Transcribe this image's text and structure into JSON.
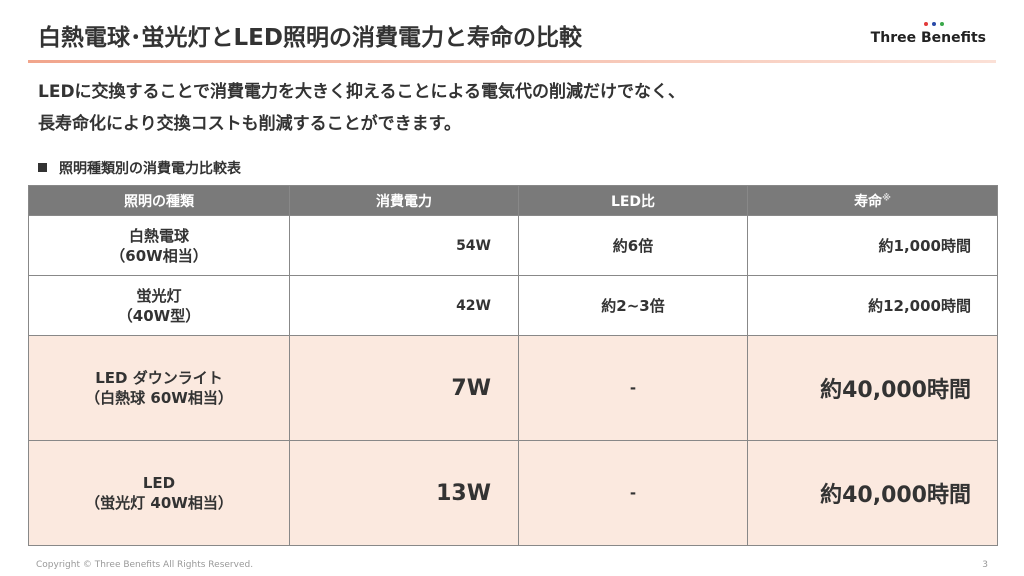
{
  "header": {
    "title": "白熱電球･蛍光灯とLED照明の消費電力と寿命の比較",
    "logo": "Three Benefits"
  },
  "intro": [
    "LEDに交換することで消費電力を大きく抑えることによる電気代の削減だけでなく、",
    "長寿命化により交換コストも削減することができます。"
  ],
  "section_title": "照明種類別の消費電力比較表",
  "table": {
    "columns": [
      "照明の種類",
      "消費電力",
      "LED比",
      "寿命"
    ],
    "column_note": "※",
    "rows": [
      [
        [
          "白熱電球",
          "（60W相当）"
        ],
        "54W",
        "約6倍",
        "約1,000時間"
      ],
      [
        [
          "蛍光灯",
          "（40W型）"
        ],
        "42W",
        "約2~3倍",
        "約12,000時間"
      ],
      [
        [
          "LED ダウンライト",
          "（白熱球 60W相当）"
        ],
        "7W",
        "-",
        "約40,000時間"
      ],
      [
        [
          "LED",
          "（蛍光灯 40W相当）"
        ],
        "13W",
        "-",
        "約40,000時間"
      ]
    ]
  },
  "footer": {
    "copyright": "Copyright © Three Benefits All Rights Reserved.",
    "page": "3"
  }
}
